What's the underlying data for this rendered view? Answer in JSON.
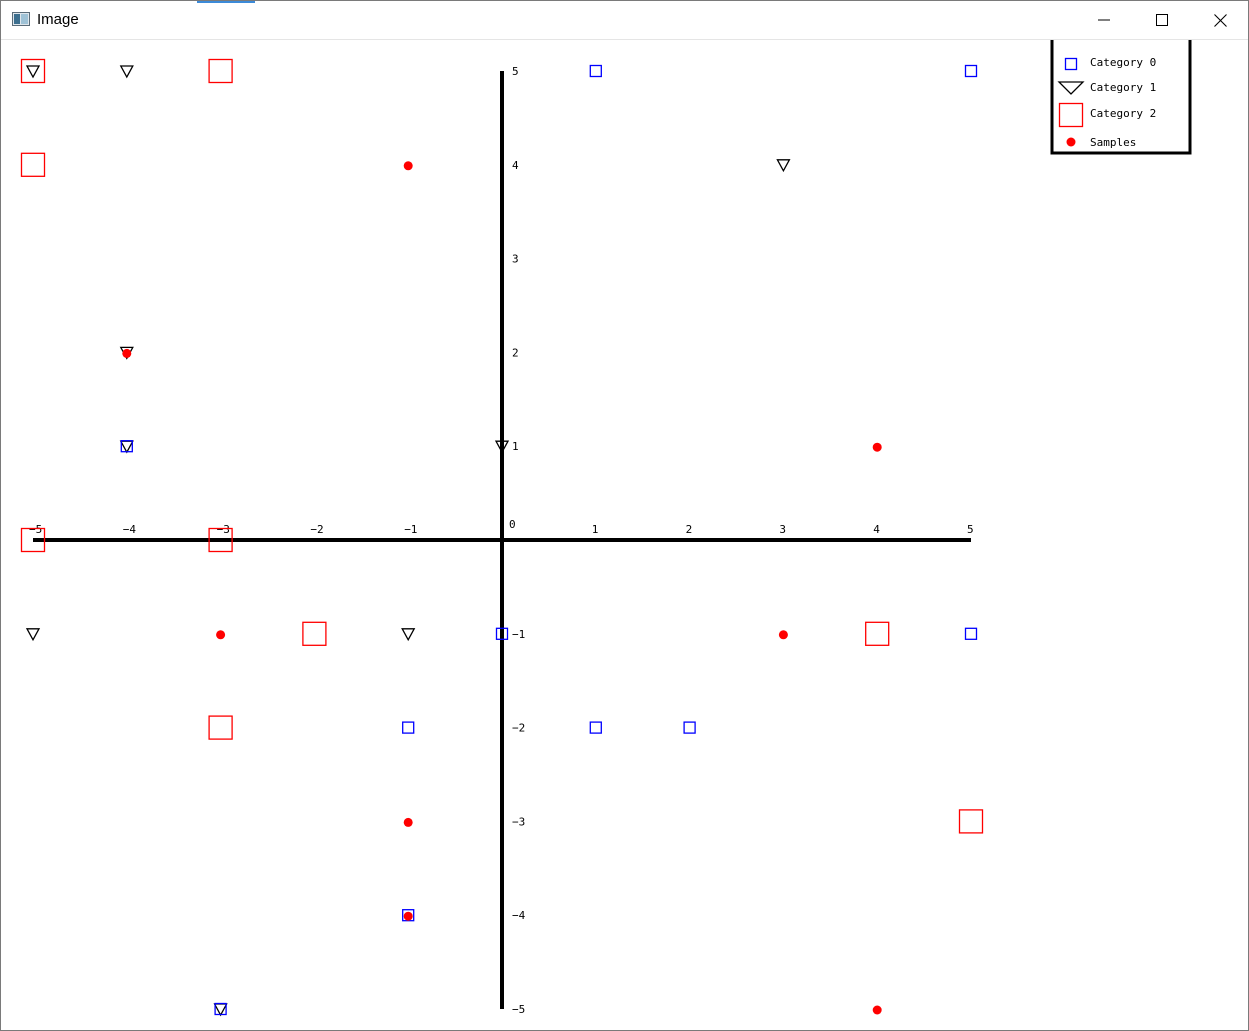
{
  "window": {
    "title": "Image",
    "icon": "image-app-icon",
    "controls": [
      "minimize-icon",
      "maximize-icon",
      "close-icon"
    ]
  },
  "chart_data": {
    "type": "scatter",
    "title": "",
    "xlabel": "",
    "ylabel": "",
    "xlim": [
      -5,
      5
    ],
    "ylim": [
      -5,
      5
    ],
    "x_ticks": [
      "−5",
      "−4",
      "−3",
      "−2",
      "−1",
      "1",
      "2",
      "3",
      "4",
      "5"
    ],
    "x_tick_values": [
      -5,
      -4,
      -3,
      -2,
      -1,
      1,
      2,
      3,
      4,
      5
    ],
    "y_ticks": [
      "5",
      "4",
      "3",
      "2",
      "1",
      "−1",
      "−2",
      "−3",
      "−4",
      "−5"
    ],
    "y_tick_values": [
      5,
      4,
      3,
      2,
      1,
      -1,
      -2,
      -3,
      -4,
      -5
    ],
    "origin_label": "0",
    "grid": false,
    "legend_position": "top-right",
    "series": [
      {
        "name": "Category 0",
        "marker": "square-small",
        "color": "#0000ff",
        "points": [
          [
            1,
            5
          ],
          [
            5,
            5
          ],
          [
            0,
            -1
          ],
          [
            5,
            -1
          ],
          [
            -1,
            -2
          ],
          [
            1,
            -2
          ],
          [
            2,
            -2
          ],
          [
            -4,
            1
          ],
          [
            -1,
            -4
          ],
          [
            -3,
            -5
          ]
        ]
      },
      {
        "name": "Category 1",
        "marker": "triangle-down",
        "color": "#000000",
        "points": [
          [
            -5,
            5
          ],
          [
            -4,
            5
          ],
          [
            3,
            4
          ],
          [
            -4,
            2
          ],
          [
            -4,
            1
          ],
          [
            0,
            1
          ],
          [
            -5,
            -1
          ],
          [
            -1,
            -1
          ],
          [
            -3,
            -5
          ]
        ]
      },
      {
        "name": "Category 2",
        "marker": "square-large",
        "color": "#ff0000",
        "points": [
          [
            -5,
            5
          ],
          [
            -3,
            5
          ],
          [
            -5,
            4
          ],
          [
            -5,
            0
          ],
          [
            -3,
            0
          ],
          [
            -2,
            -1
          ],
          [
            4,
            -1
          ],
          [
            -3,
            -2
          ],
          [
            5,
            -3
          ]
        ]
      },
      {
        "name": "Samples",
        "marker": "dot",
        "color": "#ff0000",
        "points": [
          [
            -1,
            4
          ],
          [
            -4,
            2
          ],
          [
            4,
            1
          ],
          [
            -3,
            -1
          ],
          [
            3,
            -1
          ],
          [
            -1,
            -3
          ],
          [
            -1,
            -4
          ],
          [
            4,
            -5
          ]
        ]
      }
    ]
  }
}
